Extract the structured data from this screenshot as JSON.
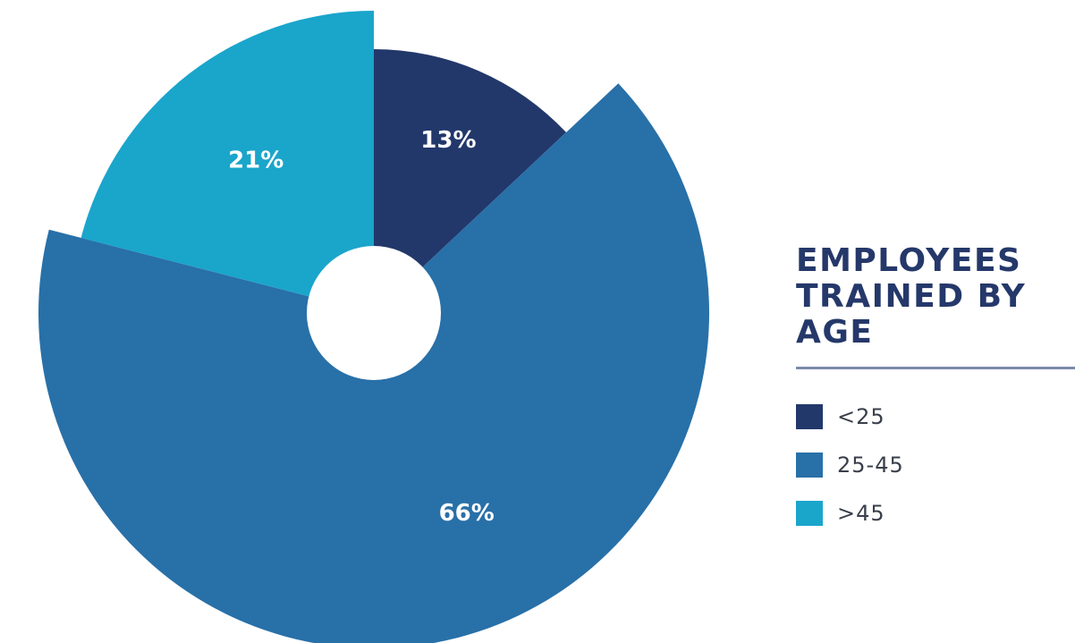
{
  "chart_data": {
    "type": "pie",
    "title": "EMPLOYEES\nTRAINED BY\nAGE",
    "legend_position": "right",
    "slices": [
      {
        "name": "<25",
        "value": 13,
        "label": "13%",
        "color": "#22386b"
      },
      {
        "name": "25-45",
        "value": 66,
        "label": "66%",
        "color": "#2870a8"
      },
      {
        "name": ">45",
        "value": 21,
        "label": "21%",
        "color": "#1aa5cb"
      }
    ]
  }
}
